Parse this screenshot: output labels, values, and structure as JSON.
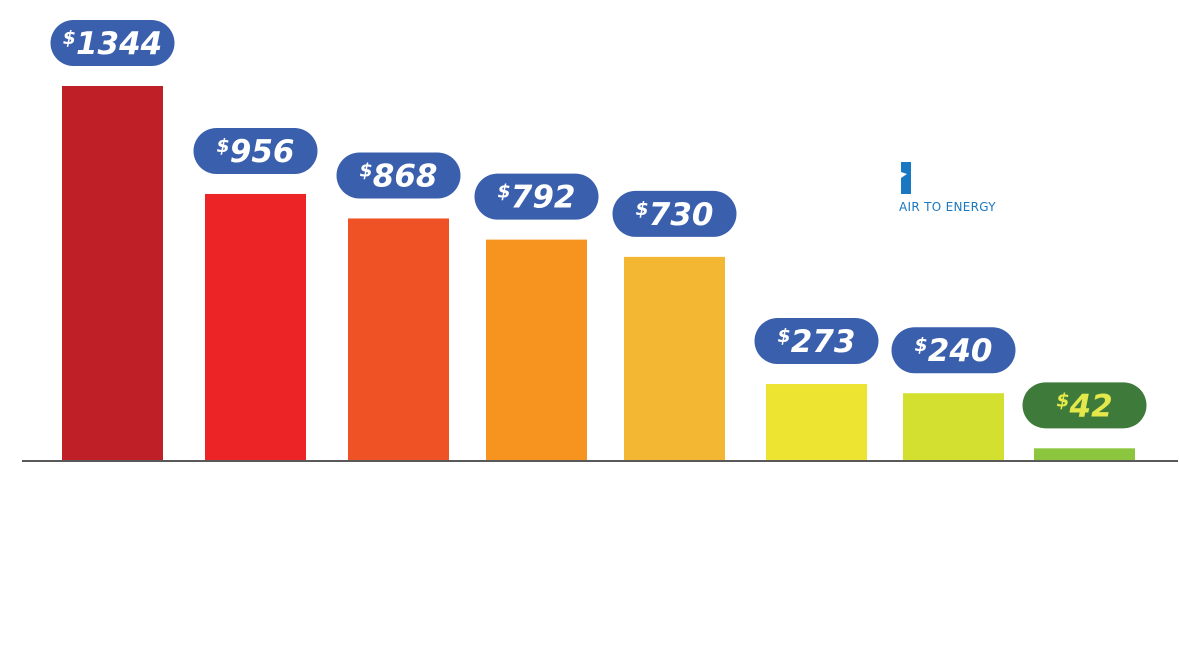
{
  "brand": {
    "name": "AIR TO ENERGY",
    "color": "#1a78c2",
    "icon": "air-to-energy-logo-icon"
  },
  "chart_data": {
    "type": "bar",
    "title": "",
    "xlabel": "",
    "ylabel": "",
    "ylim": [
      0,
      1344
    ],
    "grid": false,
    "legend": "none",
    "currency_symbol": "$",
    "categories": [
      "",
      "",
      "",
      "",
      "",
      "",
      "",
      ""
    ],
    "values": [
      1344,
      956,
      868,
      792,
      730,
      273,
      240,
      42
    ],
    "bar_colors": [
      "#bf1f27",
      "#ed2426",
      "#ef5325",
      "#f7941f",
      "#f3b734",
      "#ede431",
      "#d3e02f",
      "#8cc63f"
    ],
    "label_bg_colors": [
      "#3a5fad",
      "#3a5fad",
      "#3a5fad",
      "#3a5fad",
      "#3a5fad",
      "#3a5fad",
      "#3a5fad",
      "#3e7b3a"
    ],
    "label_text_colors": [
      "#ffffff",
      "#ffffff",
      "#ffffff",
      "#ffffff",
      "#ffffff",
      "#ffffff",
      "#ffffff",
      "#e4e84b"
    ]
  }
}
